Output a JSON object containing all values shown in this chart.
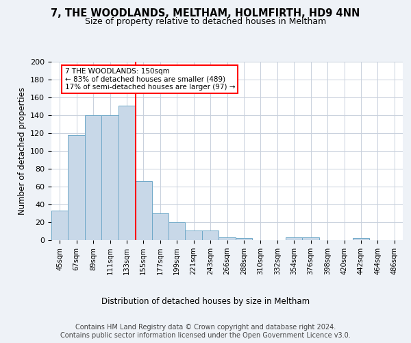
{
  "title1": "7, THE WOODLANDS, MELTHAM, HOLMFIRTH, HD9 4NN",
  "title2": "Size of property relative to detached houses in Meltham",
  "xlabel": "Distribution of detached houses by size in Meltham",
  "ylabel": "Number of detached properties",
  "bin_labels": [
    "45sqm",
    "67sqm",
    "89sqm",
    "111sqm",
    "133sqm",
    "155sqm",
    "177sqm",
    "199sqm",
    "221sqm",
    "243sqm",
    "266sqm",
    "288sqm",
    "310sqm",
    "332sqm",
    "354sqm",
    "376sqm",
    "398sqm",
    "420sqm",
    "442sqm",
    "464sqm",
    "486sqm"
  ],
  "bar_heights": [
    33,
    118,
    140,
    140,
    151,
    66,
    30,
    20,
    11,
    11,
    3,
    2,
    0,
    0,
    3,
    3,
    0,
    0,
    2,
    0,
    0
  ],
  "bar_color": "#c8d8e8",
  "bar_edge_color": "#6fa8c8",
  "vline_x_index": 4.55,
  "annotation_text": "7 THE WOODLANDS: 150sqm\n← 83% of detached houses are smaller (489)\n17% of semi-detached houses are larger (97) →",
  "annotation_box_color": "white",
  "annotation_box_edge_color": "red",
  "vline_color": "red",
  "ylim": [
    0,
    200
  ],
  "yticks": [
    0,
    20,
    40,
    60,
    80,
    100,
    120,
    140,
    160,
    180,
    200
  ],
  "footer_text": "Contains HM Land Registry data © Crown copyright and database right 2024.\nContains public sector information licensed under the Open Government Licence v3.0.",
  "background_color": "#eef2f7",
  "plot_background_color": "white",
  "grid_color": "#c8d0dc"
}
